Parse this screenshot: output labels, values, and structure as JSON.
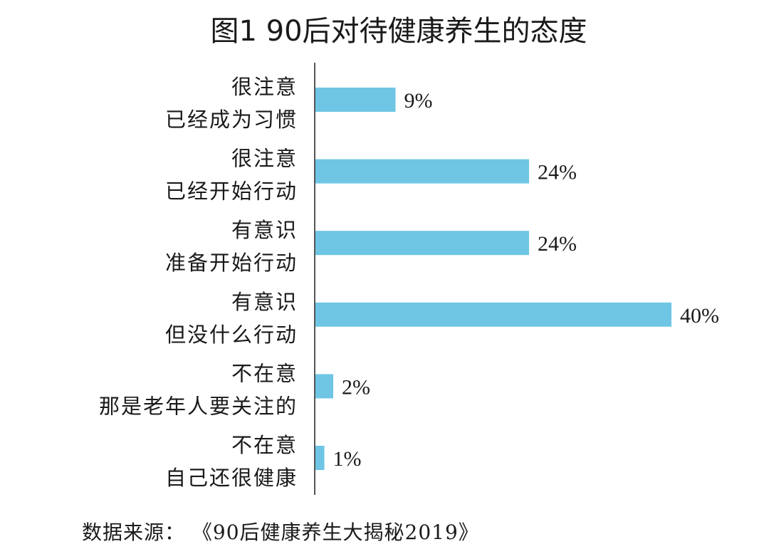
{
  "chart_data": {
    "type": "bar",
    "orientation": "horizontal",
    "title": "图1  90后对待健康养生的态度",
    "categories": [
      [
        "很注意",
        "已经成为习惯"
      ],
      [
        "很注意",
        "已经开始行动"
      ],
      [
        "有意识",
        "准备开始行动"
      ],
      [
        "有意识",
        "但没什么行动"
      ],
      [
        "不在意",
        "那是老年人要关注的"
      ],
      [
        "不在意",
        "自己还很健康"
      ]
    ],
    "values": [
      9,
      24,
      24,
      40,
      2,
      1
    ],
    "value_labels": [
      "9%",
      "24%",
      "24%",
      "40%",
      "2%",
      "1%"
    ],
    "unit": "%",
    "xlim": [
      0,
      40
    ],
    "bar_color": "#6ec6e4",
    "axis_color": "#555555",
    "grid": false,
    "legend": "none",
    "source": "数据来源：  《90后健康养生大揭秘2019》"
  }
}
